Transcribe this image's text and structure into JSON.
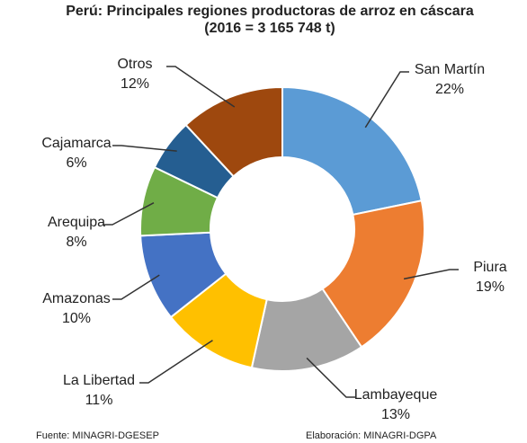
{
  "chart_data": {
    "type": "donut",
    "title": "Perú: Principales regiones productoras de arroz en cáscara",
    "subtitle": "(2016 = 3 165 748 t)",
    "categories": [
      "San Martín",
      "Piura",
      "Lambayeque",
      "La Libertad",
      "Amazonas",
      "Arequipa",
      "Cajamarca",
      "Otros"
    ],
    "values": [
      22,
      19,
      13,
      11,
      10,
      8,
      6,
      12
    ],
    "value_labels": [
      "22%",
      "19%",
      "13%",
      "11%",
      "10%",
      "8%",
      "6%",
      "12%"
    ],
    "colors": [
      "#5b9bd5",
      "#ed7d31",
      "#a5a5a5",
      "#ffc000",
      "#4472c4",
      "#70ad47",
      "#255e91",
      "#9e480e"
    ],
    "source": "Fuente: MINAGRI-DGESEP",
    "credit": "Elaboración: MINAGRI-DGPA"
  }
}
